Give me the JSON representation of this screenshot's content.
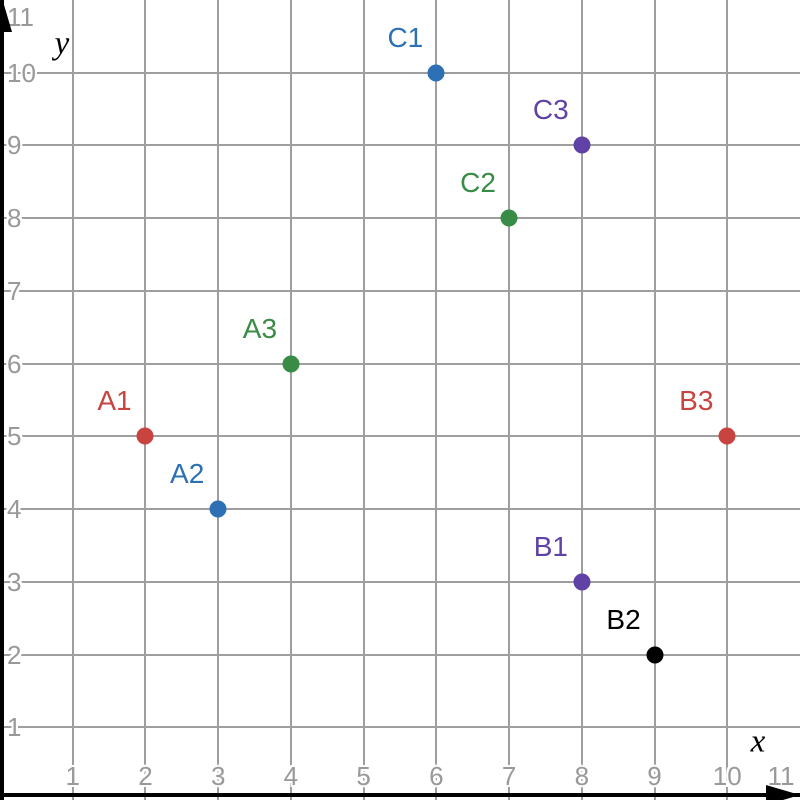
{
  "chart_data": {
    "type": "scatter",
    "xlabel": "x",
    "ylabel": "y",
    "x_ticks": [
      1,
      2,
      3,
      4,
      5,
      6,
      7,
      8,
      9,
      10,
      11
    ],
    "y_ticks": [
      1,
      2,
      3,
      4,
      5,
      6,
      7,
      8,
      9,
      10,
      11
    ],
    "xlim": [
      0,
      11
    ],
    "ylim": [
      0,
      11
    ],
    "grid": true,
    "points": [
      {
        "label": "A1",
        "x": 2,
        "y": 5,
        "color": "#c74440"
      },
      {
        "label": "A2",
        "x": 3,
        "y": 4,
        "color": "#2d70b3"
      },
      {
        "label": "A3",
        "x": 4,
        "y": 6,
        "color": "#388c46"
      },
      {
        "label": "B1",
        "x": 8,
        "y": 3,
        "color": "#6042a6"
      },
      {
        "label": "B2",
        "x": 9,
        "y": 2,
        "color": "#000000"
      },
      {
        "label": "B3",
        "x": 10,
        "y": 5,
        "color": "#c74440"
      },
      {
        "label": "C1",
        "x": 6,
        "y": 10,
        "color": "#2d70b3"
      },
      {
        "label": "C2",
        "x": 7,
        "y": 8,
        "color": "#388c46"
      },
      {
        "label": "C3",
        "x": 8,
        "y": 9,
        "color": "#6042a6"
      }
    ],
    "colors": {
      "grid": "#9e9e9e",
      "tick_text": "#999999",
      "axis": "#000000",
      "background": "#ffffff"
    }
  }
}
